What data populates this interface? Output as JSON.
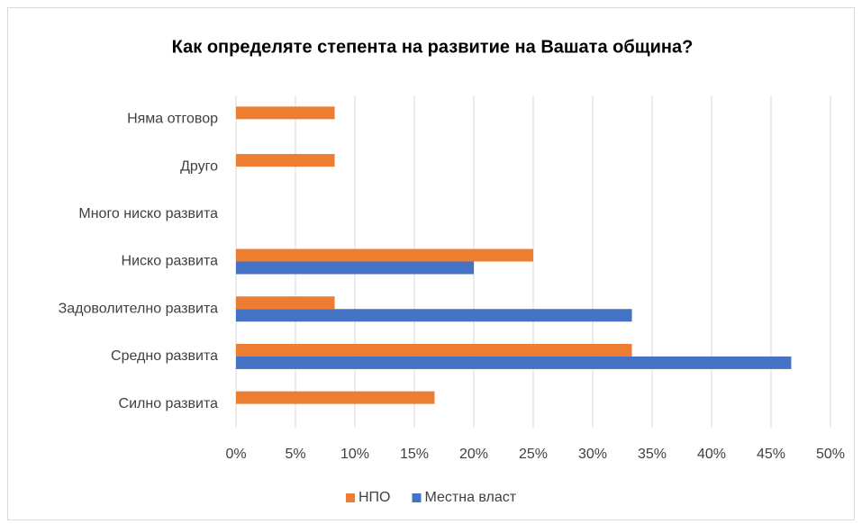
{
  "chart_data": {
    "type": "hbar",
    "title": "Как определяте степента на развитие на Вашата община?",
    "categories": [
      "Силно развита",
      "Средно развита",
      "Задоволително развита",
      "Ниско развита",
      "Много ниско развита",
      "Друго",
      "Няма отговор"
    ],
    "series": [
      {
        "name": "НПО",
        "color": "#ed7d31",
        "values": [
          16.7,
          33.3,
          8.3,
          25,
          0,
          8.3,
          8.3
        ]
      },
      {
        "name": "Местна власт",
        "color": "#4472c4",
        "values": [
          0,
          46.7,
          33.3,
          20,
          0,
          0,
          0
        ]
      }
    ],
    "xlim": [
      0,
      50
    ],
    "xticks": [
      {
        "value": 0,
        "label": "0%"
      },
      {
        "value": 5,
        "label": "5%"
      },
      {
        "value": 10,
        "label": "10%"
      },
      {
        "value": 15,
        "label": "15%"
      },
      {
        "value": 20,
        "label": "20%"
      },
      {
        "value": 25,
        "label": "25%"
      },
      {
        "value": 30,
        "label": "30%"
      },
      {
        "value": 35,
        "label": "35%"
      },
      {
        "value": 40,
        "label": "40%"
      },
      {
        "value": 45,
        "label": "45%"
      },
      {
        "value": 50,
        "label": "50%"
      }
    ],
    "grid": true,
    "legend": "bottom"
  }
}
